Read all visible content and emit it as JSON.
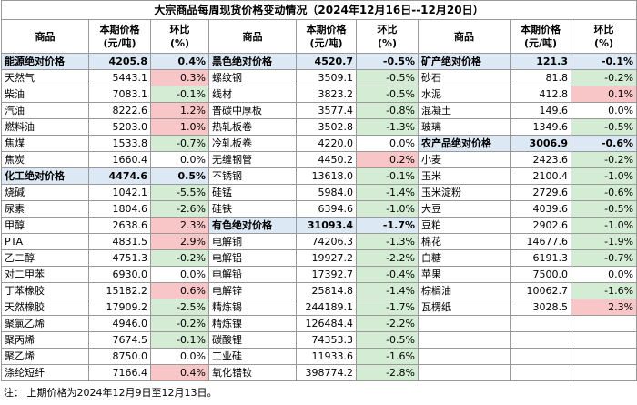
{
  "title": "大宗商品每周现货价格变动情况（2024年12月16日--12月20日）",
  "header": [
    "商品",
    "本期价格\n(元/吨)",
    "环比\n(%)"
  ],
  "columns": [
    {
      "groups": [
        {
          "name": "能源绝对价格",
          "price": "4205.8",
          "change": "0.4%",
          "items": [
            [
              "天然气",
              "5443.1",
              "0.3%"
            ],
            [
              "柴油",
              "7083.1",
              "-0.1%"
            ],
            [
              "汽油",
              "8222.6",
              "1.2%"
            ],
            [
              "燃料油",
              "5203.0",
              "1.0%"
            ],
            [
              "焦煤",
              "1533.8",
              "-0.7%"
            ],
            [
              "焦炭",
              "1660.4",
              "0.0%"
            ]
          ]
        },
        {
          "name": "化工绝对价格",
          "price": "4474.6",
          "change": "0.5%",
          "items": [
            [
              "烧碱",
              "1042.1",
              "-5.5%"
            ],
            [
              "尿素",
              "1804.6",
              "-2.6%"
            ],
            [
              "甲醇",
              "2638.6",
              "2.3%"
            ],
            [
              "PTA",
              "4831.5",
              "2.9%"
            ],
            [
              "乙二醇",
              "4751.3",
              "-0.2%"
            ],
            [
              "对二甲苯",
              "6930.0",
              "0.0%"
            ],
            [
              "丁苯橡胶",
              "15182.2",
              "0.6%"
            ],
            [
              "天然橡胶",
              "17909.2",
              "-2.5%"
            ],
            [
              "聚氯乙烯",
              "4946.0",
              "-0.2%"
            ],
            [
              "聚丙烯",
              "7674.5",
              "-0.1%"
            ],
            [
              "聚乙烯",
              "8750.0",
              "0.0%"
            ],
            [
              "涤纶短纤",
              "7166.4",
              "0.4%"
            ]
          ]
        }
      ]
    },
    {
      "groups": [
        {
          "name": "黑色绝对价格",
          "price": "4520.7",
          "change": "-0.5%",
          "items": [
            [
              "螺纹钢",
              "3509.1",
              "-0.5%"
            ],
            [
              "线材",
              "3823.2",
              "-0.5%"
            ],
            [
              "普碳中厚板",
              "3577.4",
              "-0.8%"
            ],
            [
              "热轧板卷",
              "3502.8",
              "-1.3%"
            ],
            [
              "冷轧板卷",
              "4220.0",
              "0.0%"
            ],
            [
              "无缝钢管",
              "4450.2",
              "0.2%"
            ],
            [
              "不锈钢",
              "13618.0",
              "-0.1%"
            ],
            [
              "硅锰",
              "5984.0",
              "-1.4%"
            ],
            [
              "硅铁",
              "6394.6",
              "-1.0%"
            ]
          ]
        },
        {
          "name": "有色绝对价格",
          "price": "31093.4",
          "change": "-1.7%",
          "items": [
            [
              "电解铜",
              "74206.3",
              "-1.3%"
            ],
            [
              "电解铝",
              "19927.2",
              "-2.2%"
            ],
            [
              "电解铅",
              "17392.7",
              "-0.4%"
            ],
            [
              "电解锌",
              "25814.8",
              "-1.4%"
            ],
            [
              "精炼锡",
              "244189.1",
              "-1.7%"
            ],
            [
              "精炼镍",
              "126484.4",
              "-2.2%"
            ],
            [
              "碳酸锂",
              "74353.3",
              "-0.5%"
            ],
            [
              "工业硅",
              "11933.6",
              "-1.6%"
            ],
            [
              "氧化镨钕",
              "398774.2",
              "-2.8%"
            ]
          ]
        }
      ]
    },
    {
      "groups": [
        {
          "name": "矿产绝对价格",
          "price": "121.3",
          "change": "-0.1%",
          "items": [
            [
              "砂石",
              "81.8",
              "-0.2%"
            ],
            [
              "水泥",
              "412.8",
              "0.1%"
            ],
            [
              "混凝土",
              "149.6",
              "0.0%"
            ],
            [
              "玻璃",
              "1349.6",
              "-0.5%"
            ]
          ]
        },
        {
          "name": "农产品绝对价格",
          "price": "3006.9",
          "change": "-0.6%",
          "items": [
            [
              "小麦",
              "2423.6",
              "-0.2%"
            ],
            [
              "玉米",
              "2100.4",
              "-1.0%"
            ],
            [
              "玉米淀粉",
              "2729.6",
              "-0.6%"
            ],
            [
              "大豆",
              "4039.6",
              "-0.5%"
            ],
            [
              "豆粕",
              "2902.6",
              "-1.0%"
            ],
            [
              "棉花",
              "14677.6",
              "-1.9%"
            ],
            [
              "白糖",
              "6191.3",
              "-0.7%"
            ],
            [
              "苹果",
              "7500.0",
              "0.0%"
            ],
            [
              "棕榈油",
              "10062.7",
              "-1.6%"
            ],
            [
              "瓦楞纸",
              "3028.5",
              "2.3%"
            ]
          ]
        }
      ]
    }
  ],
  "footnote": "注： 上期价格为2024年12月9日至12月13日。"
}
